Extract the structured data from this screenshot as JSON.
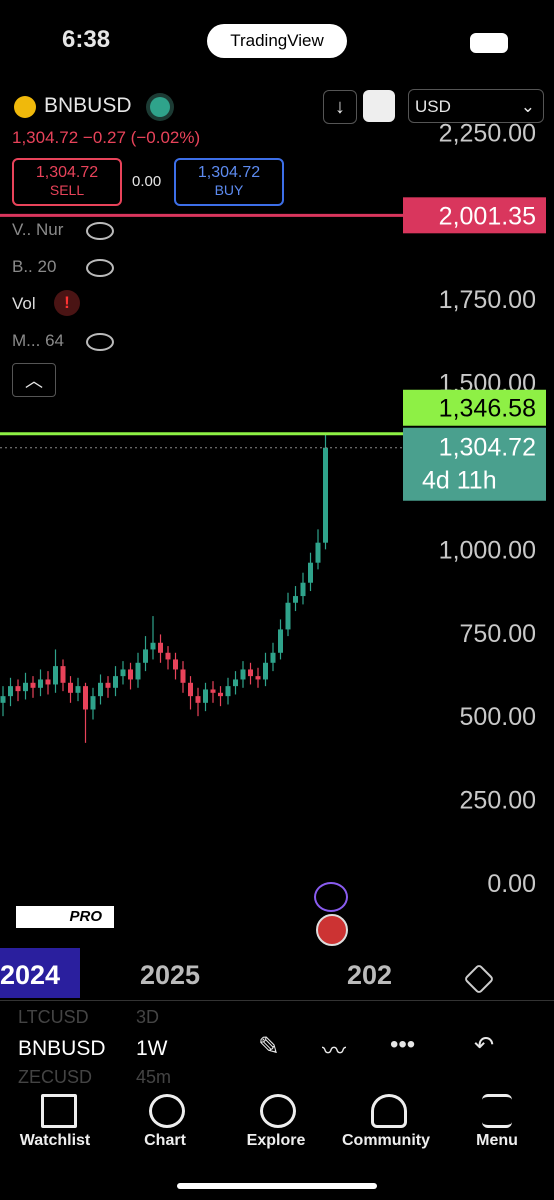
{
  "status_bar": {
    "time": "6:38",
    "app": "TradingView"
  },
  "header": {
    "symbol": "BNBUSD",
    "currency": "USD",
    "last": "1,304.72",
    "change": "−0.27",
    "change_pct": "(−0.02%)",
    "sell": {
      "price": "1,304.72",
      "label": "SELL"
    },
    "spread": "0.00",
    "buy": {
      "price": "1,304.72",
      "label": "BUY"
    }
  },
  "indicators": [
    {
      "name": "V..",
      "param": "Nur"
    },
    {
      "name": "B..",
      "param": "20"
    },
    {
      "name": "Vol",
      "param": ""
    },
    {
      "name": "M...",
      "param": "64"
    }
  ],
  "chart_data": {
    "type": "candlestick",
    "up_color": "#2fa38b",
    "down_color": "#e8435a",
    "ylim": [
      -171,
      2377
    ],
    "yticks": [
      {
        "value": 0,
        "label": "0.00"
      },
      {
        "value": 250,
        "label": "250.00"
      },
      {
        "value": 500,
        "label": "500.00"
      },
      {
        "value": 750,
        "label": "750.00"
      },
      {
        "value": 1000,
        "label": "1,000.00"
      },
      {
        "value": 1500,
        "label": "1,500.00"
      },
      {
        "value": 1750,
        "label": "1,750.00"
      },
      {
        "value": 2250,
        "label": "2,250.00"
      }
    ],
    "open": [
      540,
      560,
      590,
      575,
      600,
      585,
      610,
      595,
      650,
      600,
      570,
      590,
      520,
      560,
      600,
      585,
      620,
      640,
      610,
      660,
      700,
      720,
      690,
      670,
      640,
      600,
      560,
      540,
      580,
      570,
      560,
      590,
      610,
      640,
      620,
      610,
      660,
      690,
      760,
      840,
      860,
      900,
      960,
      1020
    ],
    "high": [
      590,
      615,
      610,
      630,
      620,
      640,
      635,
      700,
      670,
      620,
      615,
      600,
      585,
      625,
      620,
      650,
      665,
      660,
      690,
      740,
      800,
      745,
      710,
      690,
      665,
      620,
      585,
      600,
      605,
      590,
      615,
      635,
      665,
      660,
      645,
      690,
      720,
      790,
      870,
      890,
      930,
      990,
      1060,
      1346.58
    ],
    "low": [
      500,
      530,
      545,
      550,
      555,
      560,
      565,
      570,
      575,
      540,
      545,
      420,
      490,
      535,
      555,
      560,
      595,
      580,
      585,
      635,
      670,
      660,
      640,
      610,
      570,
      520,
      500,
      515,
      540,
      530,
      535,
      565,
      585,
      595,
      585,
      590,
      635,
      670,
      740,
      815,
      835,
      875,
      940,
      1000
    ],
    "close": [
      560,
      590,
      575,
      600,
      585,
      610,
      595,
      650,
      600,
      570,
      590,
      520,
      560,
      600,
      585,
      620,
      640,
      610,
      660,
      700,
      720,
      690,
      670,
      640,
      600,
      560,
      540,
      580,
      570,
      560,
      590,
      610,
      640,
      620,
      610,
      660,
      690,
      760,
      840,
      860,
      900,
      960,
      1020,
      1304.72
    ],
    "alert_line": {
      "value": 2001.35,
      "label": "2,001.35"
    },
    "high_line": {
      "value": 1346.58,
      "label": "1,346.58"
    },
    "last_price": {
      "value": 1304.72,
      "label": "1,304.72",
      "countdown": "4d 11h"
    },
    "x_labels": [
      "2024",
      "2025",
      "202"
    ],
    "logo": "PRO"
  },
  "toolbar": {
    "rows": [
      {
        "symbol": "LTCUSD",
        "interval": "3D"
      },
      {
        "symbol": "BNBUSD",
        "interval": "1W"
      },
      {
        "symbol": "ZECUSD",
        "interval": "45m"
      }
    ]
  },
  "tabs": [
    "Watchlist",
    "Chart",
    "Explore",
    "Community",
    "Menu"
  ]
}
